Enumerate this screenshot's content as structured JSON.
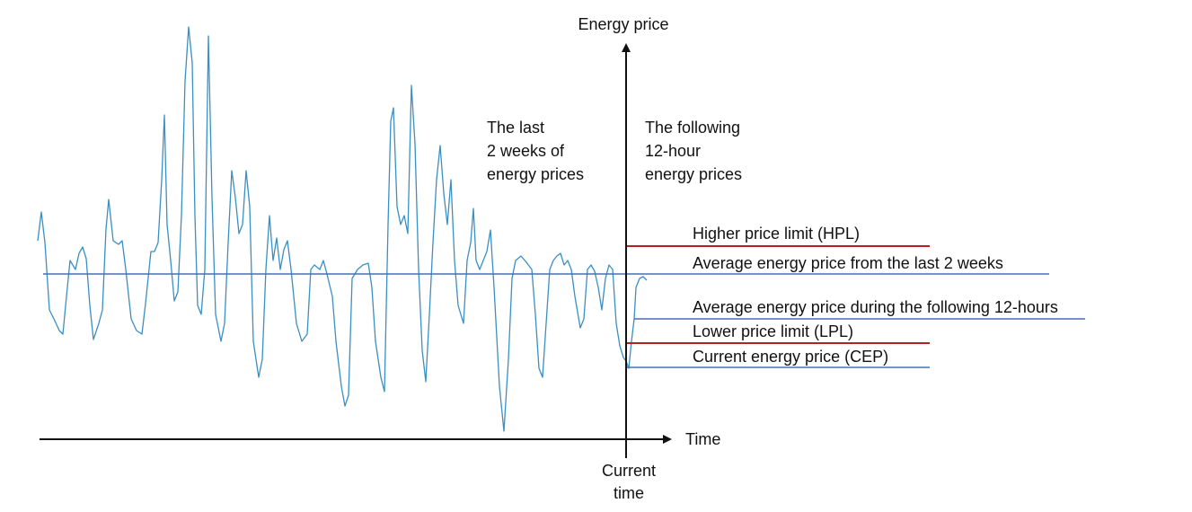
{
  "axes": {
    "y_label": "Energy price",
    "x_label": "Time",
    "current_time": [
      "Current",
      "time"
    ]
  },
  "regions": {
    "past": [
      "The last",
      "2 weeks of",
      "energy prices"
    ],
    "future": [
      "The following",
      "12-hour",
      "energy prices"
    ]
  },
  "levels": {
    "hpl": "Higher price limit (HPL)",
    "avg_2w": "Average energy price from the last 2 weeks",
    "avg_12h": "Average energy price during the following 12-hours",
    "lpl": "Lower price limit (LPL)",
    "cep": "Current energy price (CEP)"
  },
  "colors": {
    "trace": "#3a8fc4",
    "limit": "#b22222",
    "average": "#4a6fb5",
    "axis": "#111111"
  }
}
